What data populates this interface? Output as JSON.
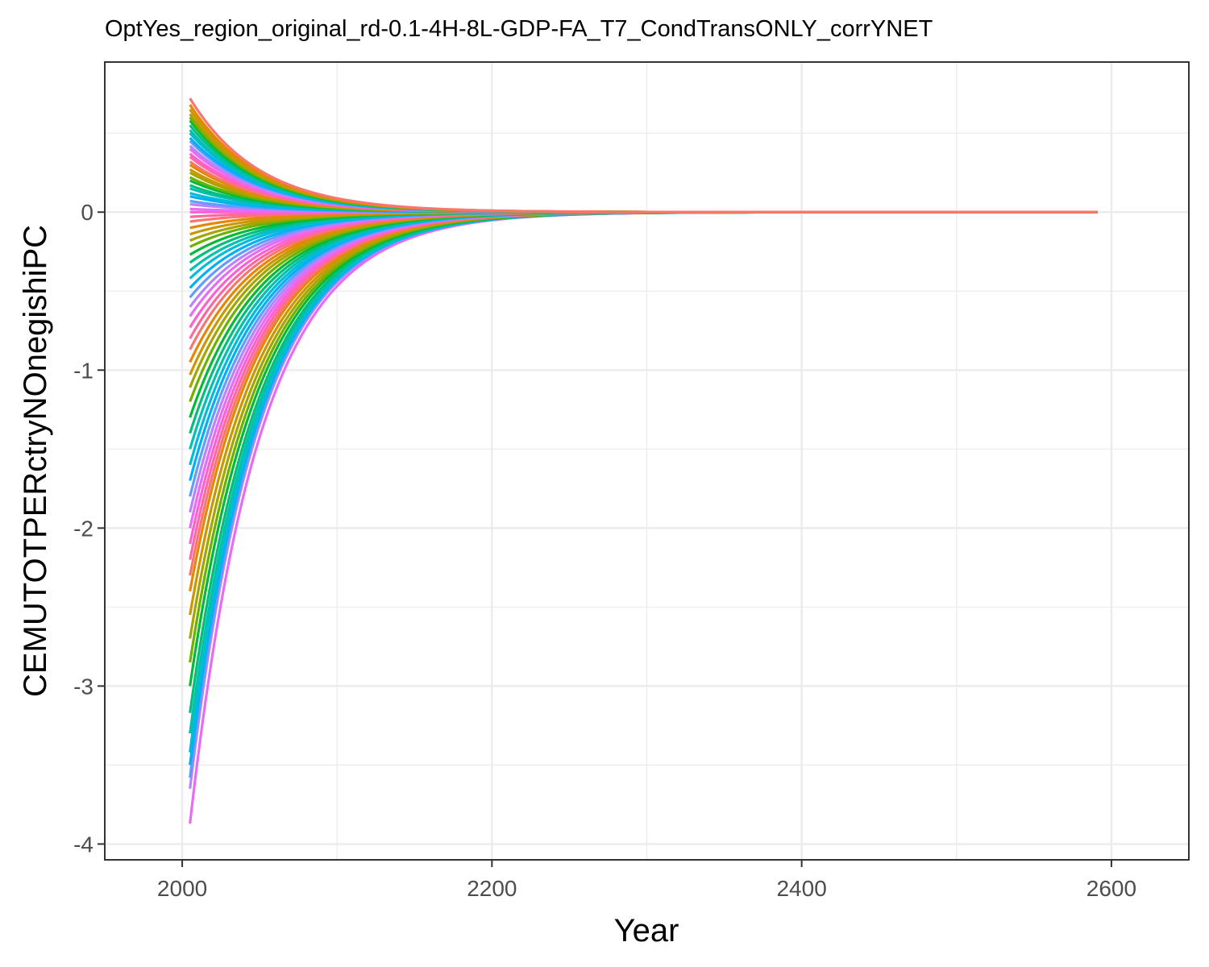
{
  "chart_data": {
    "type": "line",
    "title": "OptYes_region_original_rd-0.1-4H-8L-GDP-FA_T7_CondTransONLY_corrYNET",
    "xlabel": "Year",
    "ylabel": "CEMUTOTPERctryNOnegishiPC",
    "xlim": [
      1950,
      2650
    ],
    "ylim": [
      -4.1,
      0.95
    ],
    "x_ticks": [
      2000,
      2200,
      2400,
      2600
    ],
    "x_tick_labels": [
      "2000",
      "2200",
      "2400",
      "2600"
    ],
    "y_ticks": [
      0,
      -1,
      -2,
      -3,
      -4
    ],
    "y_tick_labels": [
      "0",
      "-1",
      "-2",
      "-3",
      "-4"
    ],
    "grid": true,
    "legend": "none",
    "x_start": 2005,
    "x_end": 2595,
    "decay_years": 45,
    "series_start_values": [
      0.72,
      0.68,
      0.65,
      0.62,
      0.6,
      0.58,
      0.55,
      0.52,
      0.5,
      0.47,
      0.45,
      0.42,
      0.4,
      0.37,
      0.35,
      0.32,
      0.3,
      0.27,
      0.25,
      0.22,
      0.2,
      0.17,
      0.15,
      0.12,
      0.1,
      0.07,
      0.05,
      0.02,
      0.0,
      -0.03,
      -0.06,
      -0.1,
      -0.14,
      -0.18,
      -0.22,
      -0.27,
      -0.32,
      -0.37,
      -0.42,
      -0.48,
      -0.54,
      -0.6,
      -0.66,
      -0.73,
      -0.8,
      -0.87,
      -0.95,
      -1.03,
      -1.11,
      -1.2,
      -1.3,
      -1.4,
      -1.5,
      -1.6,
      -1.7,
      -1.8,
      -1.9,
      -2.0,
      -2.1,
      -2.2,
      -2.3,
      -2.4,
      -2.55,
      -2.7,
      -2.85,
      -3.0,
      -3.17,
      -3.3,
      -3.42,
      -3.5,
      -3.58,
      -3.65,
      -3.87
    ],
    "colors": [
      "#F8766D",
      "#E58700",
      "#C99800",
      "#A3A500",
      "#6BB100",
      "#00BA38",
      "#00BF7D",
      "#00C0AF",
      "#00BCD8",
      "#00B0F6",
      "#619CFF",
      "#B983FF",
      "#E76BF3",
      "#FD61D1",
      "#FF67A4"
    ]
  }
}
